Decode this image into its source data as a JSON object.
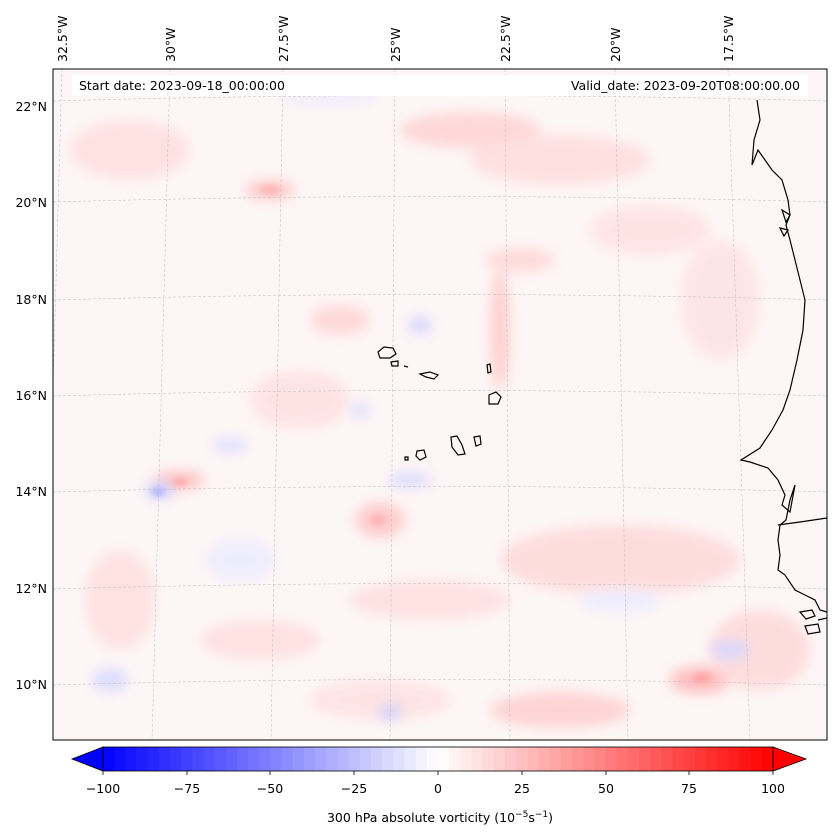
{
  "map": {
    "start_date_label": "Start date: 2023-09-18_00:00:00",
    "valid_date_label": "Valid_date: 2023-09-20T08:00:00.00",
    "longitude_labels": [
      "32.5°W",
      "30°W",
      "27.5°W",
      "25°W",
      "22.5°W",
      "20°W",
      "17.5°W"
    ],
    "latitude_labels": [
      "22°N",
      "20°N",
      "18°N",
      "16°N",
      "14°N",
      "12°N",
      "10°N"
    ],
    "field_description": "300 hPa absolute vorticity field over the eastern tropical Atlantic with Cape Verde islands and West African coastline",
    "coastline_color": "#000000",
    "background_color": "#fdf7f7"
  },
  "colorbar": {
    "label_main": "300 hPa absolute vorticity (10",
    "label_exp1": "−5",
    "label_mid": "s",
    "label_exp2": "−1",
    "label_end": ")",
    "ticks": [
      "−100",
      "−75",
      "−50",
      "−25",
      "0",
      "25",
      "50",
      "75",
      "100"
    ],
    "min_color": "#0000ff",
    "mid_color": "#ffffff",
    "max_color": "#ff0000",
    "levels": 60
  }
}
